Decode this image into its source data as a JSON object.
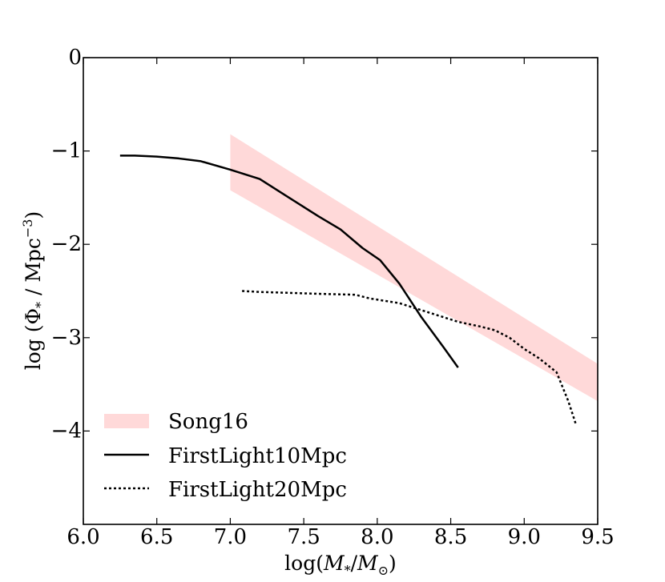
{
  "chart_data": {
    "type": "line",
    "title": "",
    "xlabel": "log(M_*/M_⊙)",
    "xlabel_parts": {
      "prefix": "log(",
      "m1": "M",
      "sub1": "*",
      "slash": "/",
      "m2": "M",
      "sub2": "⊙",
      "suffix": ")"
    },
    "ylabel": "log (Φ_* / Mpc^-3)",
    "ylabel_parts": {
      "prefix": "log (",
      "phi": "Φ",
      "sub": "*",
      "mid": " / Mpc",
      "sup": "−3",
      "suffix": ")"
    },
    "xlim": [
      6.0,
      9.5
    ],
    "ylim": [
      -5.0,
      0.0
    ],
    "xticks": [
      6.0,
      6.5,
      7.0,
      7.5,
      8.0,
      8.5,
      9.0,
      9.5
    ],
    "xtick_labels": [
      "6.0",
      "6.5",
      "7.0",
      "7.5",
      "8.0",
      "8.5",
      "9.0",
      "9.5"
    ],
    "yticks": [
      0,
      -1,
      -2,
      -3,
      -4
    ],
    "ytick_labels": [
      "0",
      "−1",
      "−2",
      "−3",
      "−4"
    ],
    "grid": false,
    "legend_position": "lower-left",
    "colors": {
      "band": "#ffd9d9",
      "line": "#000000"
    },
    "series": [
      {
        "name": "Song16",
        "style": "band",
        "x": [
          7.0,
          9.5
        ],
        "upper": [
          -0.82,
          -3.28
        ],
        "lower": [
          -1.42,
          -3.68
        ]
      },
      {
        "name": "FirstLight10Mpc",
        "style": "solid",
        "x": [
          6.25,
          6.35,
          6.5,
          6.65,
          6.8,
          7.0,
          7.2,
          7.4,
          7.6,
          7.75,
          7.9,
          8.02,
          8.15,
          8.3,
          8.45,
          8.55
        ],
        "y": [
          -1.05,
          -1.05,
          -1.06,
          -1.08,
          -1.11,
          -1.2,
          -1.3,
          -1.5,
          -1.7,
          -1.84,
          -2.04,
          -2.17,
          -2.42,
          -2.78,
          -3.1,
          -3.32
        ]
      },
      {
        "name": "FirstLight20Mpc",
        "style": "dotted",
        "x": [
          7.08,
          7.2,
          7.4,
          7.6,
          7.85,
          7.95,
          8.15,
          8.35,
          8.55,
          8.7,
          8.8,
          8.9,
          9.0,
          9.1,
          9.22,
          9.3,
          9.35
        ],
        "y": [
          -2.5,
          -2.51,
          -2.52,
          -2.53,
          -2.54,
          -2.58,
          -2.63,
          -2.73,
          -2.83,
          -2.88,
          -2.92,
          -3.0,
          -3.12,
          -3.22,
          -3.37,
          -3.68,
          -3.92
        ]
      }
    ]
  }
}
